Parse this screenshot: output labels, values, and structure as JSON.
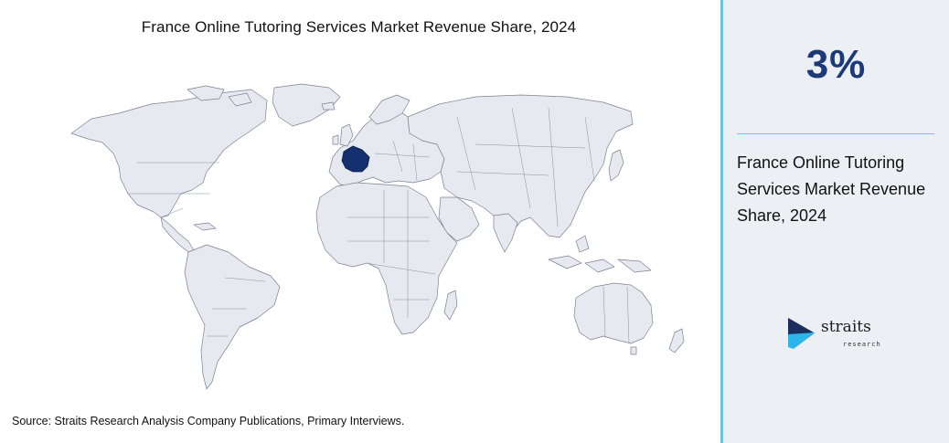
{
  "title": "France Online Tutoring Services Market Revenue Share, 2024",
  "source": {
    "label": "Source",
    "text": ": Straits Research Analysis Company Publications, Primary Interviews."
  },
  "panel": {
    "stat": "3%",
    "description": "France Online Tutoring Services Market Revenue Share, 2024"
  },
  "map": {
    "highlighted_country": "France",
    "highlight_color": "#14306e",
    "land_color": "#e6e9ef",
    "accent_color": "#5bc8f0"
  },
  "logo": {
    "word": "straits",
    "sub": "research"
  }
}
